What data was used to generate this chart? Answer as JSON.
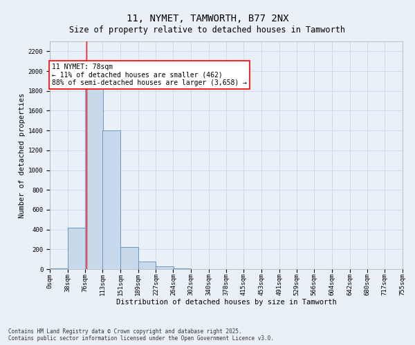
{
  "title_line1": "11, NYMET, TAMWORTH, B77 2NX",
  "title_line2": "Size of property relative to detached houses in Tamworth",
  "xlabel": "Distribution of detached houses by size in Tamworth",
  "ylabel": "Number of detached properties",
  "bin_labels": [
    "0sqm",
    "38sqm",
    "76sqm",
    "113sqm",
    "151sqm",
    "189sqm",
    "227sqm",
    "264sqm",
    "302sqm",
    "340sqm",
    "378sqm",
    "415sqm",
    "453sqm",
    "491sqm",
    "529sqm",
    "566sqm",
    "604sqm",
    "642sqm",
    "680sqm",
    "717sqm",
    "755sqm"
  ],
  "bin_edges": [
    0,
    38,
    76,
    113,
    151,
    189,
    227,
    264,
    302,
    340,
    378,
    415,
    453,
    491,
    529,
    566,
    604,
    642,
    680,
    717,
    755
  ],
  "bar_heights": [
    5,
    420,
    2100,
    1400,
    220,
    80,
    30,
    10,
    2,
    0,
    0,
    0,
    0,
    0,
    0,
    0,
    0,
    0,
    0,
    0
  ],
  "bar_color": "#c9d9ec",
  "bar_edge_color": "#5b8db8",
  "grid_color": "#c8d8e8",
  "background_color": "#eaf0f8",
  "red_line_x": 78,
  "annotation_text": "11 NYMET: 78sqm\n← 11% of detached houses are smaller (462)\n88% of semi-detached houses are larger (3,658) →",
  "annotation_box_color": "white",
  "annotation_box_edge_color": "red",
  "ylim": [
    0,
    2300
  ],
  "yticks": [
    0,
    200,
    400,
    600,
    800,
    1000,
    1200,
    1400,
    1600,
    1800,
    2000,
    2200
  ],
  "footer_line1": "Contains HM Land Registry data © Crown copyright and database right 2025.",
  "footer_line2": "Contains public sector information licensed under the Open Government Licence v3.0.",
  "title_fontsize": 10,
  "subtitle_fontsize": 8.5,
  "axis_label_fontsize": 7.5,
  "tick_fontsize": 6.5,
  "annotation_fontsize": 7,
  "footer_fontsize": 5.5
}
